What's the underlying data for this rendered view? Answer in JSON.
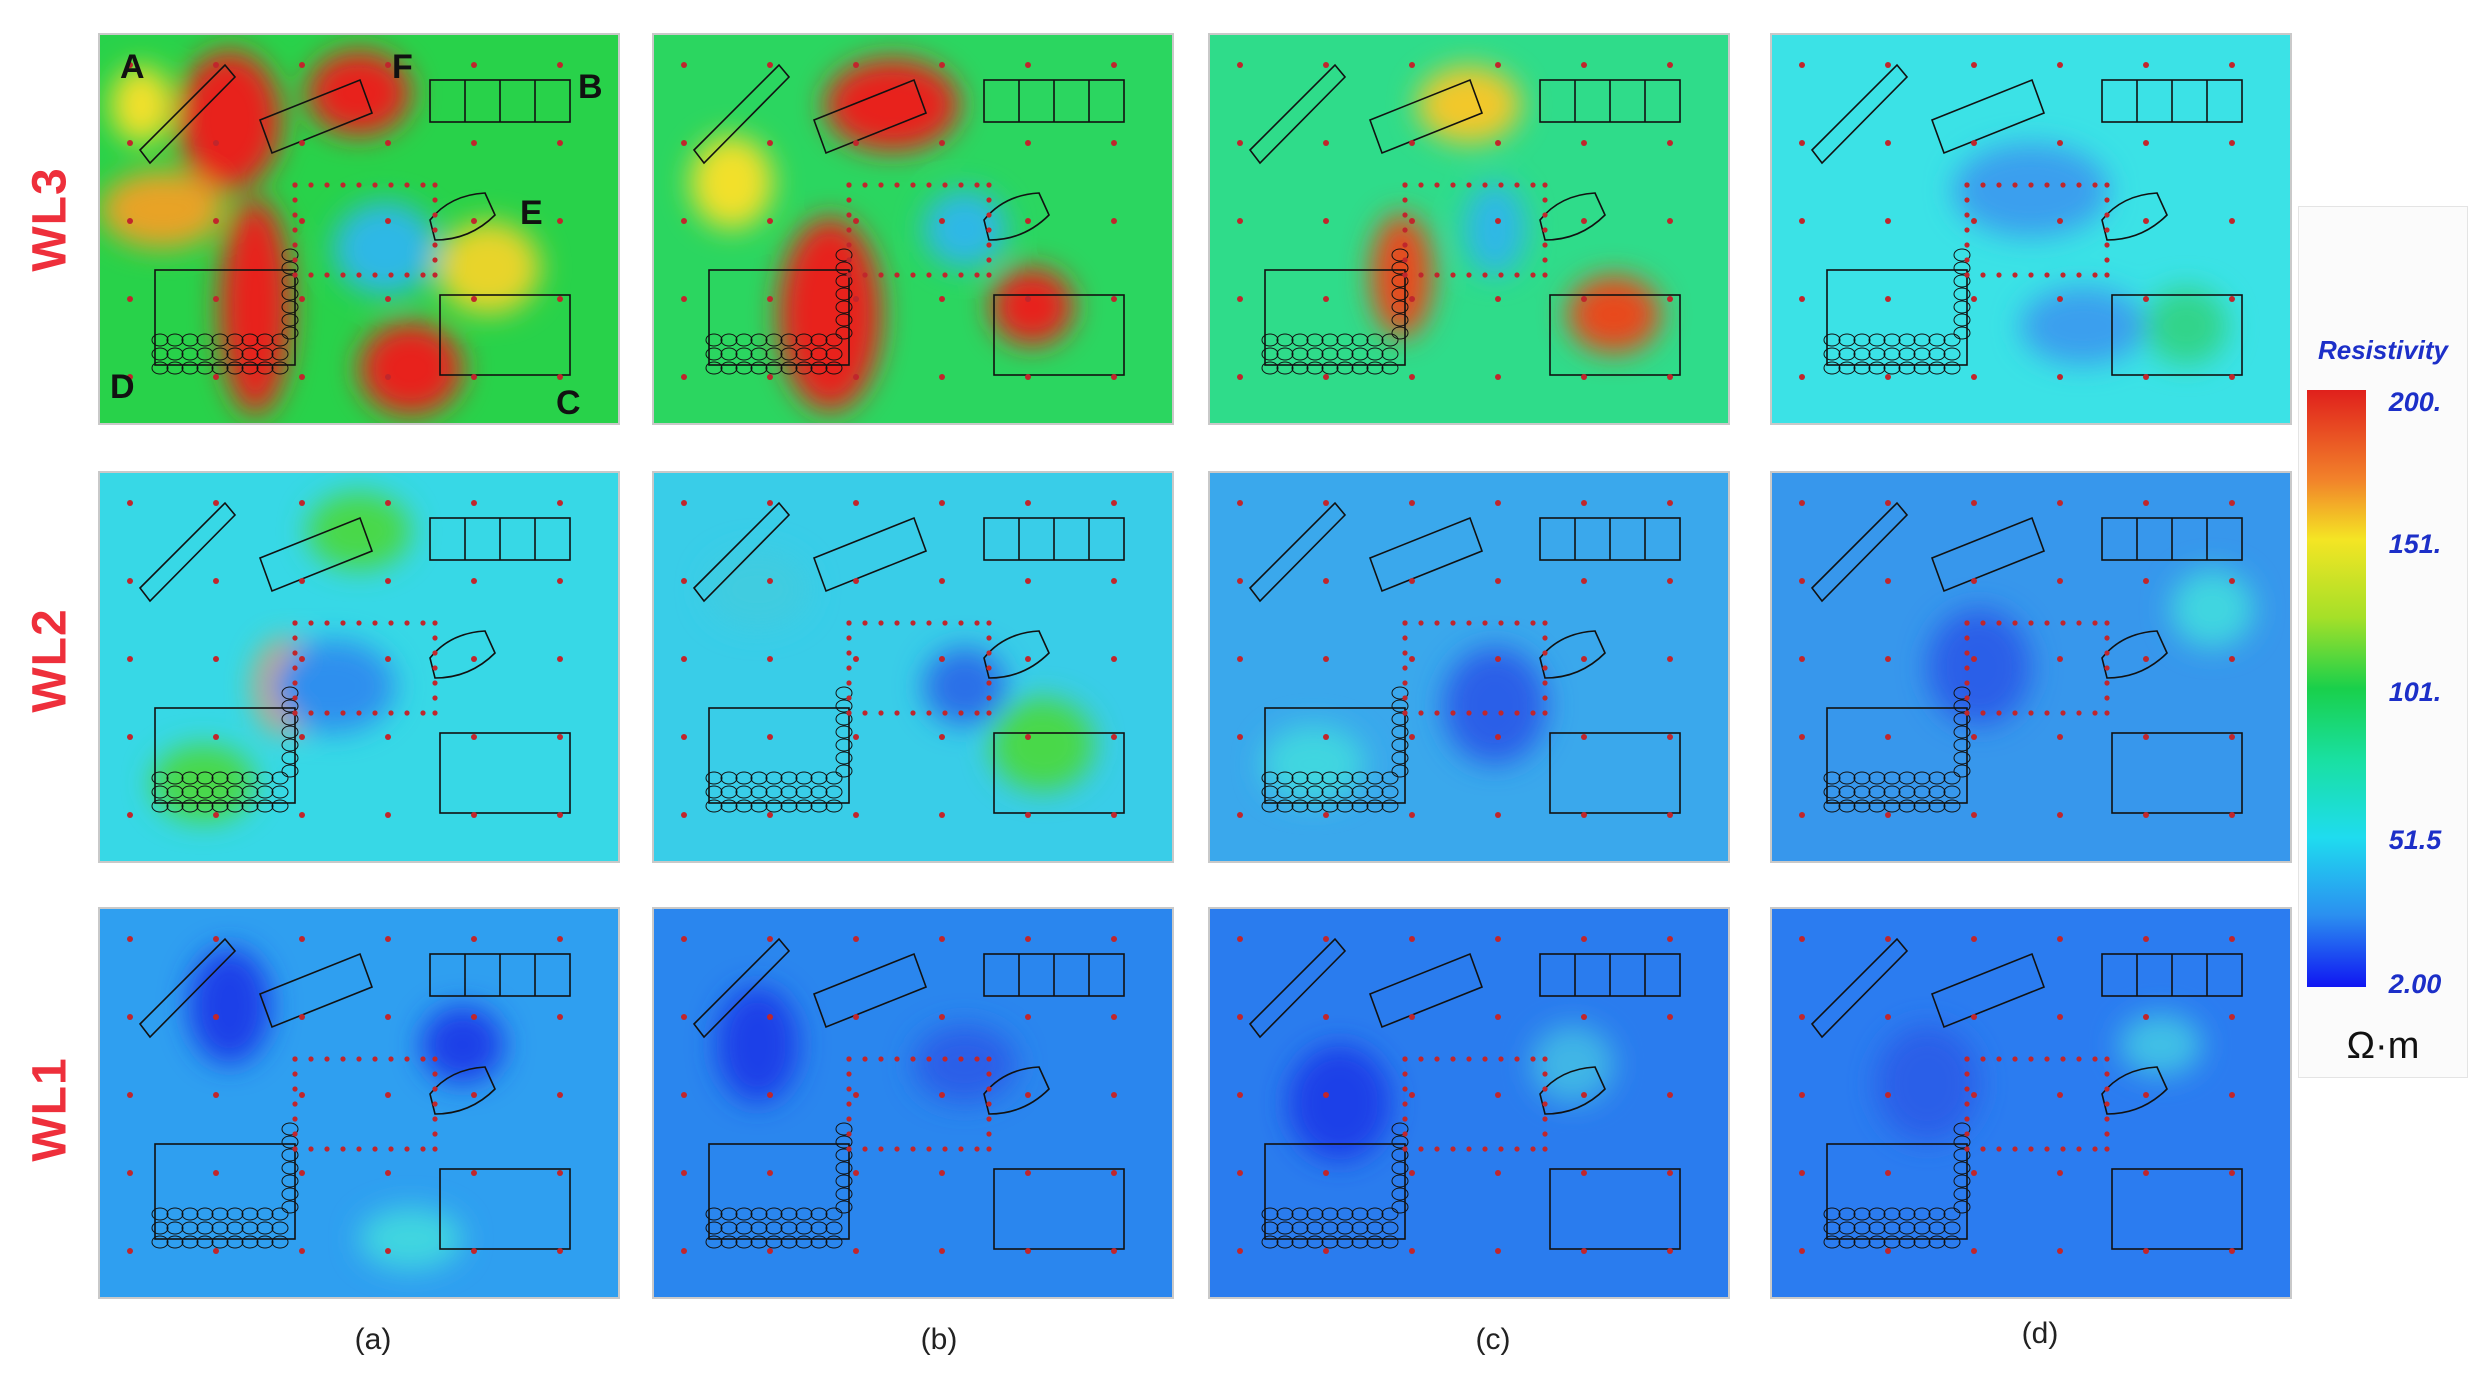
{
  "rows": [
    {
      "label": "WL3"
    },
    {
      "label": "WL2"
    },
    {
      "label": "WL1"
    }
  ],
  "columns": [
    {
      "label": "(a)"
    },
    {
      "label": "(b)"
    },
    {
      "label": "(c)"
    },
    {
      "label": "(d)"
    }
  ],
  "corner_labels": {
    "A": "A",
    "B": "B",
    "C": "C",
    "D": "D",
    "E": "E",
    "F": "F"
  },
  "legend": {
    "title": "Resistivity",
    "ticks": [
      "200.",
      "151.",
      "101.",
      "51.5",
      "2.00"
    ],
    "unit": "Ω·m",
    "colormap": [
      "#e0201c",
      "#f2822a",
      "#f4e524",
      "#a6e028",
      "#19d04b",
      "#19e0a2",
      "#1fdcef",
      "#2b8ff0",
      "#1016f2"
    ]
  },
  "colors": {
    "row_label": "#ee2f3b",
    "legend_text": "#1c2fc8",
    "electrode": "#c0262c"
  }
}
